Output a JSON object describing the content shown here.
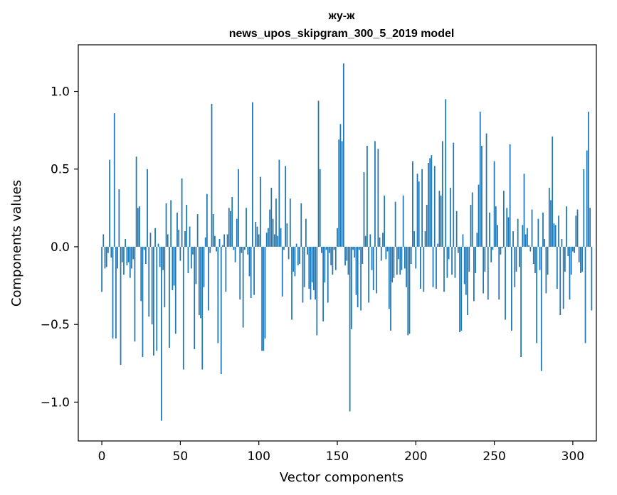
{
  "chart_data": {
    "type": "bar",
    "title": "жу-ж",
    "subtitle": "news_upos_skipgram_300_5_2019 model",
    "xlabel": "Vector components",
    "ylabel": "Components values",
    "xlim": [
      -15,
      315
    ],
    "ylim": [
      -1.25,
      1.3
    ],
    "xticks": [
      0,
      50,
      100,
      150,
      200,
      250,
      300
    ],
    "xtick_labels": [
      "0",
      "50",
      "100",
      "150",
      "200",
      "250",
      "300"
    ],
    "yticks": [
      -1.0,
      -0.5,
      0.0,
      0.5,
      1.0
    ],
    "ytick_labels": [
      "−1.0",
      "−0.5",
      "0.0",
      "0.5",
      "1.0"
    ],
    "color": "#1f77b4",
    "grid": false,
    "values": [
      -0.29,
      0.08,
      -0.14,
      -0.13,
      -0.04,
      0.56,
      -0.07,
      -0.59,
      0.86,
      -0.59,
      -0.14,
      0.37,
      -0.76,
      -0.1,
      -0.18,
      0.05,
      -0.12,
      -0.1,
      -0.2,
      -0.14,
      -0.08,
      -0.61,
      0.58,
      0.25,
      0.26,
      -0.35,
      -0.71,
      -0.02,
      -0.11,
      0.5,
      -0.45,
      0.09,
      -0.5,
      -0.7,
      0.12,
      -0.67,
      0.02,
      -0.13,
      -1.12,
      -0.15,
      -0.39,
      0.28,
      0.08,
      -0.65,
      0.3,
      -0.28,
      -0.25,
      -0.56,
      0.22,
      0.11,
      -0.09,
      0.44,
      -0.79,
      0.1,
      0.27,
      -0.17,
      0.13,
      -0.14,
      -0.05,
      -0.66,
      -0.24,
      0.21,
      -0.44,
      -0.46,
      -0.79,
      -0.26,
      0.06,
      0.34,
      -0.41,
      -0.04,
      0.92,
      0.21,
      0.07,
      -0.03,
      -0.62,
      0.05,
      -0.82,
      0.01,
      0.08,
      -0.29,
      0.08,
      0.25,
      0.23,
      0.32,
      -0.02,
      -0.1,
      0.18,
      0.5,
      -0.34,
      -0.04,
      -0.52,
      -0.02,
      0.25,
      -0.05,
      -0.19,
      -0.33,
      0.93,
      -0.31,
      0.16,
      0.13,
      0.08,
      0.45,
      -0.67,
      -0.67,
      -0.59,
      0.09,
      0.12,
      0.24,
      0.38,
      0.18,
      0.08,
      0.31,
      0.07,
      0.56,
      0.12,
      -0.32,
      -0.02,
      0.52,
      0.15,
      -0.08,
      0.31,
      -0.47,
      -0.16,
      -0.19,
      0.02,
      -0.12,
      -0.11,
      0.28,
      -0.36,
      -0.26,
      0.18,
      -0.05,
      -0.27,
      -0.34,
      -0.23,
      -0.28,
      -0.34,
      -0.57,
      0.94,
      0.5,
      -0.04,
      -0.48,
      -0.23,
      -0.02,
      -0.36,
      -0.04,
      -0.12,
      -0.18,
      -0.02,
      -0.15,
      0.12,
      0.69,
      0.79,
      0.68,
      1.18,
      -0.12,
      -0.09,
      -0.18,
      -1.06,
      -0.53,
      -0.02,
      -0.07,
      -0.31,
      -0.39,
      -0.02,
      -0.41,
      -0.11,
      0.48,
      0.07,
      0.65,
      -0.36,
      0.08,
      -0.15,
      -0.28,
      0.68,
      -0.3,
      0.63,
      0.06,
      -0.09,
      0.09,
      0.33,
      -0.08,
      -0.03,
      -0.4,
      -0.54,
      -0.23,
      -0.2,
      0.29,
      -0.18,
      -0.08,
      -0.18,
      -0.15,
      0.33,
      -0.14,
      -0.26,
      -0.57,
      -0.56,
      -0.11,
      0.55,
      0.1,
      -0.14,
      0.47,
      0.42,
      -0.27,
      0.5,
      -0.29,
      0.1,
      0.27,
      0.54,
      0.57,
      0.59,
      -0.26,
      0.52,
      -0.27,
      0.02,
      0.36,
      0.33,
      0.68,
      -0.29,
      0.95,
      -0.2,
      -0.08,
      0.38,
      -0.18,
      0.67,
      -0.2,
      0.23,
      -0.04,
      -0.55,
      -0.54,
      0.08,
      -0.24,
      -0.31,
      -0.44,
      -0.16,
      0.27,
      0.35,
      -0.35,
      -0.17,
      0.09,
      0.4,
      0.87,
      0.65,
      -0.3,
      -0.16,
      0.73,
      -0.34,
      0.22,
      -0.1,
      -0.02,
      0.55,
      0.26,
      0.14,
      -0.34,
      -0.05,
      -0.01,
      0.36,
      -0.47,
      0.25,
      0.19,
      0.66,
      -0.54,
      0.1,
      -0.26,
      -0.16,
      0.18,
      -0.13,
      -0.71,
      0.14,
      0.47,
      0.08,
      0.12,
      0.01,
      -0.03,
      0.24,
      -0.11,
      -0.17,
      -0.62,
      0.18,
      -0.15,
      -0.8,
      0.22,
      0.05,
      -0.3,
      -0.18,
      0.38,
      0.3,
      0.71,
      0.15,
      0.14,
      -0.27,
      0.2,
      -0.44,
      0.05,
      -0.4,
      -0.16,
      0.26,
      -0.06,
      -0.34,
      -0.18,
      -0.03,
      -0.04,
      0.2,
      0.24,
      -0.1,
      -0.17,
      -0.16,
      0.5,
      -0.62,
      0.62,
      0.87,
      0.25,
      -0.41
    ],
    "xtick_values_note": "bar index = vector component number"
  }
}
